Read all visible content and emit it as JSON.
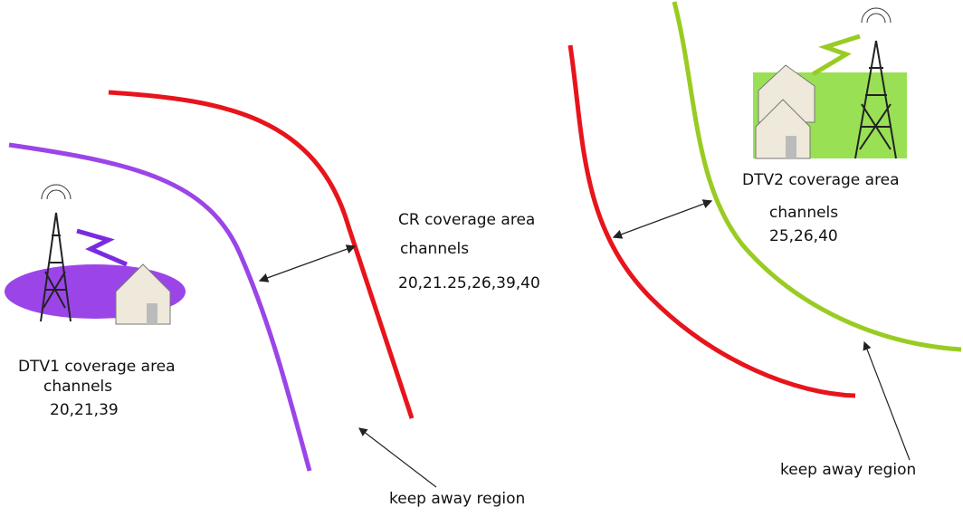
{
  "dtv1": {
    "title": "DTV1 coverage area",
    "channels_label": "channels",
    "channels": "20,21,39"
  },
  "cr": {
    "title": "CR coverage area",
    "channels_label": "channels",
    "channels": "20,21.25,26,39,40"
  },
  "dtv2": {
    "title": "DTV2 coverage area",
    "channels_label": "channels",
    "channels": "25,26,40"
  },
  "keep_away": [
    "keep away region",
    "keep away region"
  ]
}
